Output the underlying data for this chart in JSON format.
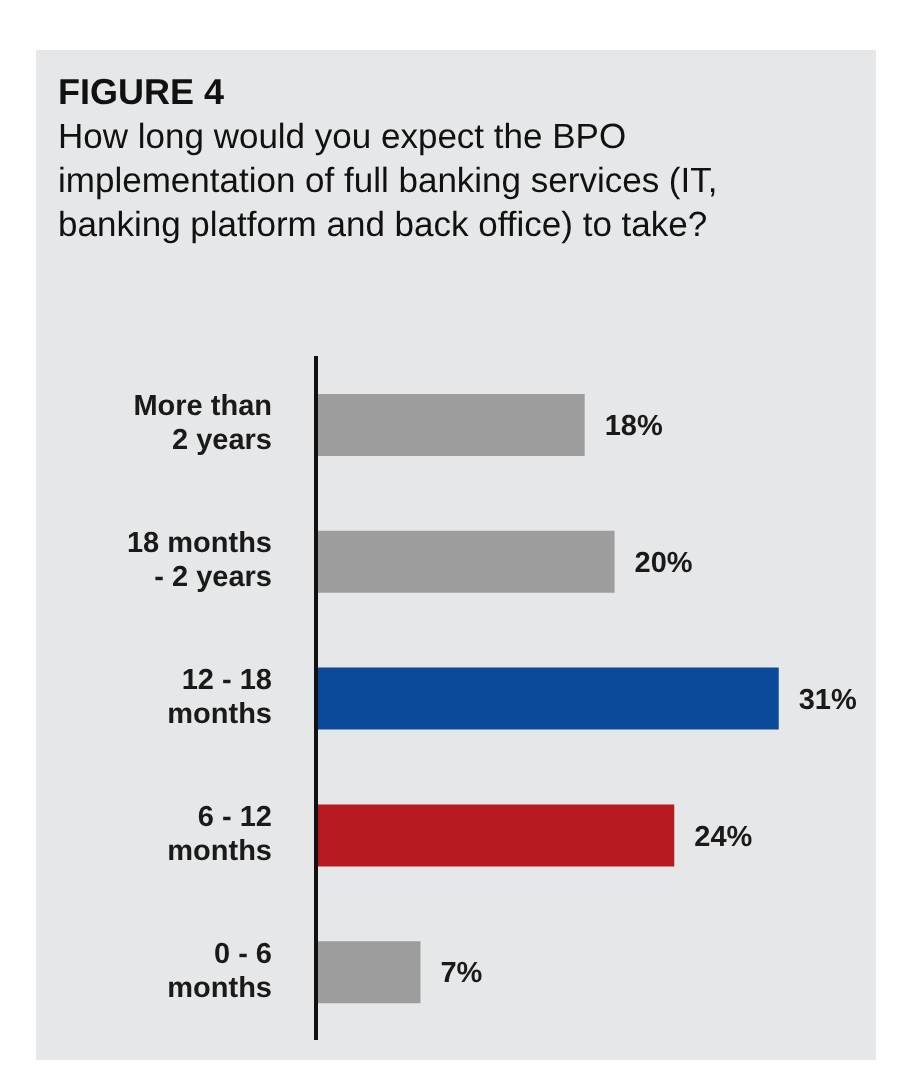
{
  "chart_data": {
    "type": "bar",
    "orientation": "horizontal",
    "title": "FIGURE 4",
    "subtitle": "How long would you expect the BPO implementation of full banking services (IT, banking platform and back office) to take?",
    "categories": [
      "More than\n2 years",
      "18 months\n- 2 years",
      "12 - 18\nmonths",
      "6 - 12\nmonths",
      "0 - 6\nmonths"
    ],
    "values": [
      18,
      20,
      31,
      24,
      7
    ],
    "colors": [
      "#9d9d9d",
      "#9d9d9d",
      "#0b4a9b",
      "#b71b1f",
      "#9d9d9d"
    ],
    "value_labels": [
      "18%",
      "20%",
      "31%",
      "24%",
      "7%"
    ],
    "grid": false,
    "legend": false
  }
}
